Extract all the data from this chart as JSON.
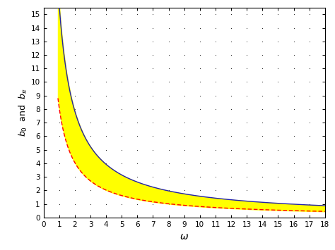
{
  "title": "",
  "xlabel": "\\omega",
  "ylabel": "b_0  and  b_\\pi",
  "xlim": [
    0,
    18
  ],
  "ylim": [
    0,
    15.5
  ],
  "xticks": [
    0,
    1,
    2,
    3,
    4,
    5,
    6,
    7,
    8,
    9,
    10,
    11,
    12,
    13,
    14,
    15,
    16,
    17,
    18
  ],
  "yticks": [
    0,
    1,
    2,
    3,
    4,
    5,
    6,
    7,
    8,
    9,
    10,
    11,
    12,
    13,
    14,
    15
  ],
  "upper_color": "#2222aa",
  "lower_color": "#ff0000",
  "fill_color": "#ffff00",
  "dot_color": "#111111",
  "background_color": "#ffffff",
  "b0_A": 15.7,
  "bpi_A": 8.1,
  "omega_start": 0.92,
  "figsize": [
    4.74,
    3.55
  ],
  "dpi": 100
}
